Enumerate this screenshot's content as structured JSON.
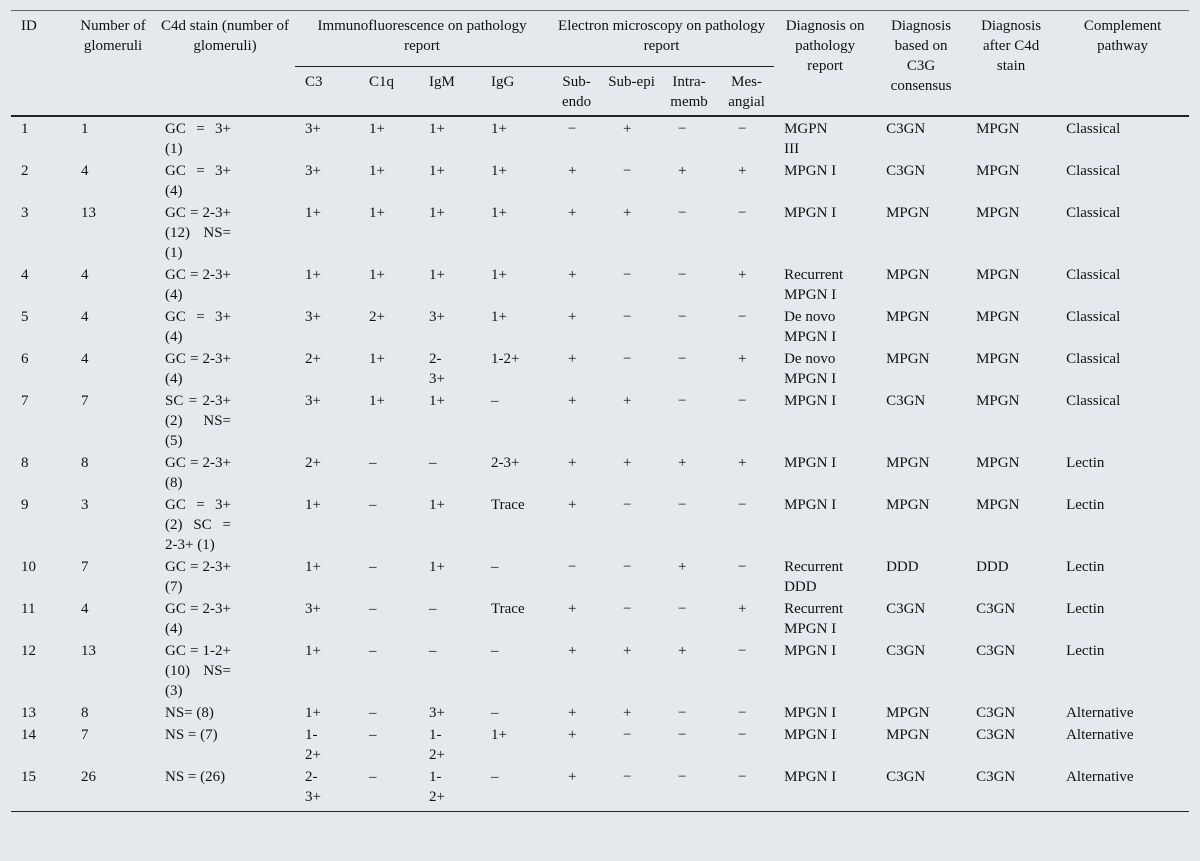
{
  "table": {
    "headers": {
      "id": "ID",
      "number": "Number of glomeruli",
      "c4d": "C4d stain (number of glomeruli)",
      "immunofluorescence": "Immunofluorescence on pathology report",
      "electron_microscopy": "Electron microscopy on pathology report",
      "diagnosis_pathology": "Diagnosis on pathology report",
      "diagnosis_c3g": "Diagnosis based on C3G consensus",
      "diagnosis_c4d": "Diagnosis after C4d stain",
      "complement": "Complement pathway"
    },
    "subheaders": [
      "C3",
      "C1q",
      "IgM",
      "IgG",
      "Sub-endo",
      "Sub-epi",
      "Intra-memb",
      "Mes-angial"
    ],
    "rows": [
      [
        1,
        1,
        "GC = 3+ (1)",
        "3+",
        "1+",
        "1+",
        "1+",
        "−",
        "+",
        "−",
        "−",
        "MGPN III",
        "C3GN",
        "MPGN",
        "Classical"
      ],
      [
        2,
        4,
        "GC = 3+ (4)",
        "3+",
        "1+",
        "1+",
        "1+",
        "+",
        "−",
        "+",
        "+",
        "MPGN I",
        "C3GN",
        "MPGN",
        "Classical"
      ],
      [
        3,
        13,
        "GC = 2-3+ (12) NS= (1)",
        "1+",
        "1+",
        "1+",
        "1+",
        "+",
        "+",
        "−",
        "−",
        "MPGN I",
        "MPGN",
        "MPGN",
        "Classical"
      ],
      [
        4,
        4,
        "GC = 2-3+ (4)",
        "1+",
        "1+",
        "1+",
        "1+",
        "+",
        "−",
        "−",
        "+",
        "Recurrent MPGN I",
        "MPGN",
        "MPGN",
        "Classical"
      ],
      [
        5,
        4,
        "GC = 3+ (4)",
        "3+",
        "2+",
        "3+",
        "1+",
        "+",
        "−",
        "−",
        "−",
        "De novo MPGN I",
        "MPGN",
        "MPGN",
        "Classical"
      ],
      [
        6,
        4,
        "GC = 2-3+ (4)",
        "2+",
        "1+",
        "2-3+",
        "1-2+",
        "+",
        "−",
        "−",
        "+",
        "De novo MPGN I",
        "MPGN",
        "MPGN",
        "Classical"
      ],
      [
        7,
        7,
        "SC = 2-3+ (2) NS= (5)",
        "3+",
        "1+",
        "1+",
        "–",
        "+",
        "+",
        "−",
        "−",
        "MPGN I",
        "C3GN",
        "MPGN",
        "Classical"
      ],
      [
        8,
        8,
        "GC = 2-3+ (8)",
        "2+",
        "–",
        "–",
        "2-3+",
        "+",
        "+",
        "+",
        "+",
        "MPGN I",
        "MPGN",
        "MPGN",
        "Lectin"
      ],
      [
        9,
        3,
        "GC = 3+ (2) SC = 2-3+ (1)",
        "1+",
        "–",
        "1+",
        "Trace",
        "+",
        "−",
        "−",
        "−",
        "MPGN I",
        "MPGN",
        "MPGN",
        "Lectin"
      ],
      [
        10,
        7,
        "GC = 2-3+ (7)",
        "1+",
        "–",
        "1+",
        "–",
        "−",
        "−",
        "+",
        "−",
        "Recurrent DDD",
        "DDD",
        "DDD",
        "Lectin"
      ],
      [
        11,
        4,
        "GC = 2-3+ (4)",
        "3+",
        "–",
        "–",
        "Trace",
        "+",
        "−",
        "−",
        "+",
        "Recurrent MPGN I",
        "C3GN",
        "C3GN",
        "Lectin"
      ],
      [
        12,
        13,
        "GC = 1-2+ (10) NS= (3)",
        "1+",
        "–",
        "–",
        "–",
        "+",
        "+",
        "+",
        "−",
        "MPGN I",
        "C3GN",
        "C3GN",
        "Lectin"
      ],
      [
        13,
        8,
        "NS= (8)",
        "1+",
        "–",
        "3+",
        "–",
        "+",
        "+",
        "−",
        "−",
        "MPGN I",
        "MPGN",
        "C3GN",
        "Alternative"
      ],
      [
        14,
        7,
        "NS = (7)",
        "1-2+",
        "–",
        "1-2+",
        "1+",
        "+",
        "−",
        "−",
        "−",
        "MPGN I",
        "MPGN",
        "C3GN",
        "Alternative"
      ],
      [
        15,
        26,
        "NS = (26)",
        "2-3+",
        "–",
        "1-2+",
        "–",
        "+",
        "−",
        "−",
        "−",
        "MPGN I",
        "C3GN",
        "C3GN",
        "Alternative"
      ]
    ]
  }
}
